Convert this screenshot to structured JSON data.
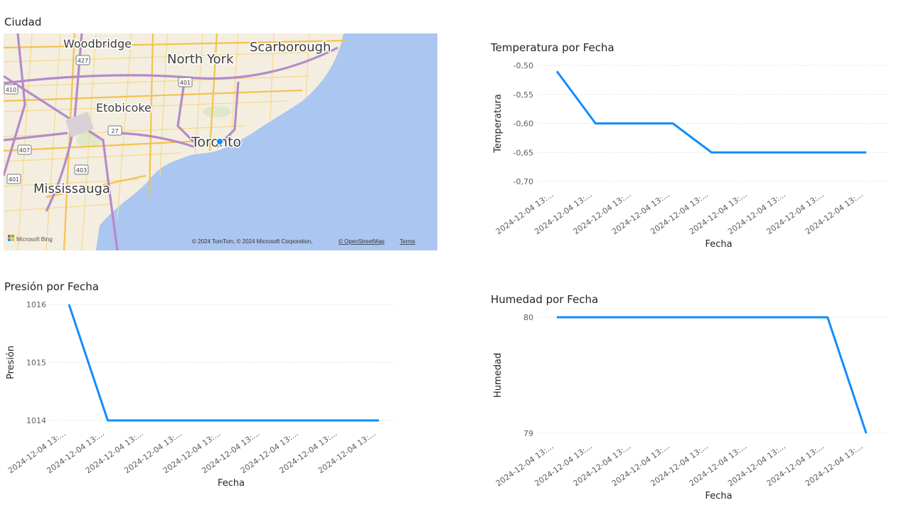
{
  "map_visual": {
    "title": "Ciudad",
    "labels": {
      "woodbridge": "Woodbridge",
      "north_york": "North York",
      "scarborough": "Scarborough",
      "etobicoke": "Etobicoke",
      "toronto": "Toronto",
      "mississauga": "Mississauga"
    },
    "shields": {
      "h427": "427",
      "h401a": "401",
      "h410": "410",
      "h27": "27",
      "h407": "407",
      "h403": "403",
      "h401b": "401"
    },
    "attribution": {
      "logo": "Microsoft Bing",
      "copyright": "© 2024 TomTom, © 2024 Microsoft Corporation,",
      "osm": "© OpenStreetMap",
      "terms": "Terms"
    },
    "colors": {
      "water": "#abc6f0",
      "land": "#f4efe2",
      "highway": "#b58ac9",
      "road": "#f6cf6e"
    }
  },
  "chart_data": [
    {
      "type": "line",
      "title": "Temperatura por Fecha",
      "xlabel": "Fecha",
      "ylabel": "Temperatura",
      "categories": [
        "2024-12-04 13:...",
        "2024-12-04 13:...",
        "2024-12-04 13:...",
        "2024-12-04 13:...",
        "2024-12-04 13:...",
        "2024-12-04 13:...",
        "2024-12-04 13:...",
        "2024-12-04 13:...",
        "2024-12-04 13:..."
      ],
      "values": [
        -0.51,
        -0.6,
        -0.6,
        -0.6,
        -0.65,
        -0.65,
        -0.65,
        -0.65,
        -0.65
      ],
      "ylim": [
        -0.7,
        -0.5
      ],
      "yticks": [
        -0.5,
        -0.55,
        -0.6,
        -0.65,
        -0.7
      ],
      "ytick_labels": [
        "-0,50",
        "-0,55",
        "-0,60",
        "-0,65",
        "-0,70"
      ],
      "grid": true,
      "color": "#118dff"
    },
    {
      "type": "line",
      "title": "Presión por Fecha",
      "xlabel": "Fecha",
      "ylabel": "Presión",
      "categories": [
        "2024-12-04 13:...",
        "2024-12-04 13:...",
        "2024-12-04 13:...",
        "2024-12-04 13:...",
        "2024-12-04 13:...",
        "2024-12-04 13:...",
        "2024-12-04 13:...",
        "2024-12-04 13:...",
        "2024-12-04 13:..."
      ],
      "values": [
        1016,
        1014,
        1014,
        1014,
        1014,
        1014,
        1014,
        1014,
        1014
      ],
      "ylim": [
        1014,
        1016
      ],
      "yticks": [
        1016,
        1015,
        1014
      ],
      "ytick_labels": [
        "1016",
        "1015",
        "1014"
      ],
      "grid": true,
      "color": "#118dff"
    },
    {
      "type": "line",
      "title": "Humedad por Fecha",
      "xlabel": "Fecha",
      "ylabel": "Humedad",
      "categories": [
        "2024-12-04 13:...",
        "2024-12-04 13:...",
        "2024-12-04 13:...",
        "2024-12-04 13:...",
        "2024-12-04 13:...",
        "2024-12-04 13:...",
        "2024-12-04 13:...",
        "2024-12-04 13:...",
        "2024-12-04 13:..."
      ],
      "values": [
        80,
        80,
        80,
        80,
        80,
        80,
        80,
        80,
        79
      ],
      "ylim": [
        79,
        80
      ],
      "yticks": [
        80,
        79
      ],
      "ytick_labels": [
        "80",
        "79"
      ],
      "grid": true,
      "color": "#118dff"
    }
  ]
}
